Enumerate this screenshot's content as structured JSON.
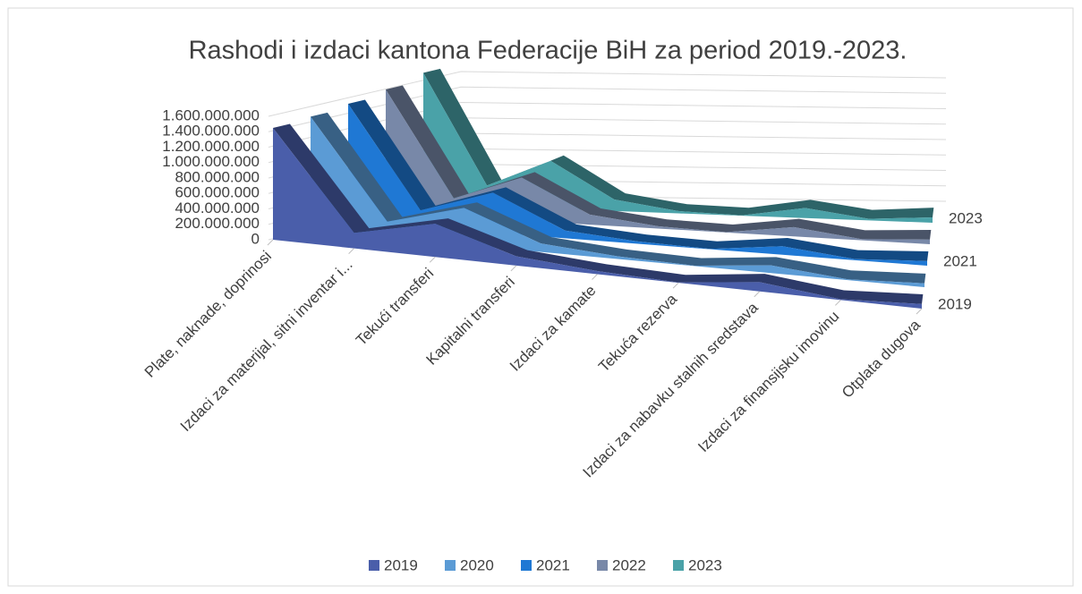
{
  "chart_data": {
    "type": "area3d",
    "title": "Rashodi i izdaci kantona Federacije BiH za period 2019.-2023.",
    "categories": [
      "Plate, naknade, doprinosi",
      "Izdaci za materijal, sitni inventar i...",
      "Tekući transferi",
      "Kapitalni transferi",
      "Izdaci za kamate",
      "Tekuća rezerva",
      "Izdaci za nabavku stalnih sredstava",
      "Izdaci za finansijsku imovinu",
      "Otplata dugova"
    ],
    "series": [
      {
        "name": "2019",
        "color": "#4a5eaa",
        "values": [
          1450000000,
          200000000,
          430000000,
          120000000,
          40000000,
          5000000,
          120000000,
          10000000,
          60000000
        ]
      },
      {
        "name": "2020",
        "color": "#5b9bd5",
        "values": [
          1480000000,
          210000000,
          480000000,
          110000000,
          35000000,
          5000000,
          100000000,
          10000000,
          50000000
        ]
      },
      {
        "name": "2021",
        "color": "#1f78d4",
        "values": [
          1530000000,
          220000000,
          520000000,
          100000000,
          30000000,
          5000000,
          110000000,
          15000000,
          60000000
        ]
      },
      {
        "name": "2022",
        "color": "#7888a8",
        "values": [
          1600000000,
          240000000,
          560000000,
          130000000,
          30000000,
          5000000,
          120000000,
          15000000,
          60000000
        ]
      },
      {
        "name": "2023",
        "color": "#4aa2a8",
        "values": [
          1700000000,
          270000000,
          620000000,
          150000000,
          30000000,
          5000000,
          130000000,
          20000000,
          70000000
        ]
      }
    ],
    "ylim": [
      0,
      1600000000
    ],
    "yticks": [
      0,
      {
        "value": 200000000,
        "label": "200.000.000"
      },
      {
        "value": 400000000,
        "label": "400.000.000"
      },
      {
        "value": 600000000,
        "label": "600.000.000"
      },
      {
        "value": 800000000,
        "label": "800.000.000"
      },
      {
        "value": 1000000000,
        "label": "1.000.000.000"
      },
      {
        "value": 1200000000,
        "label": "1.200.000.000"
      },
      {
        "value": 1400000000,
        "label": "1.400.000.000"
      },
      {
        "value": 1600000000,
        "label": "1.600.000.000"
      }
    ],
    "depth_labels": [
      0,
      2,
      4
    ],
    "grid": true,
    "legend": "bottom"
  }
}
